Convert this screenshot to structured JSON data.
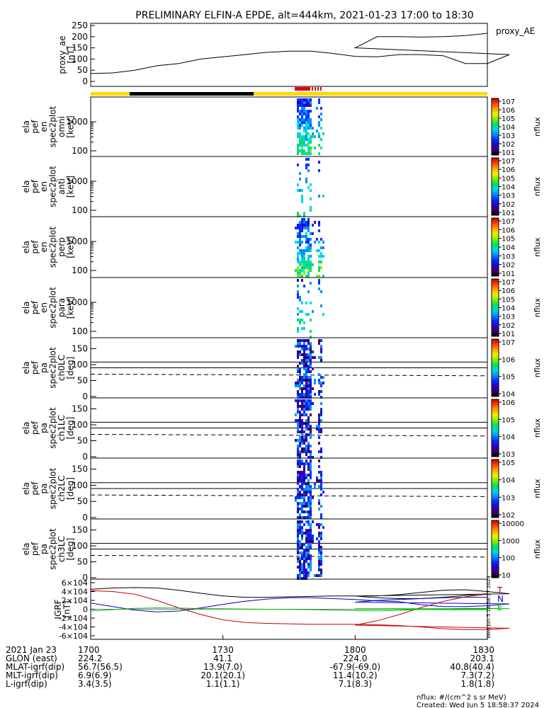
{
  "title": "PRELIMINARY ELFIN-A EPDE, alt=444km, 2021-01-23 17:00 to 18:30",
  "colors": {
    "bar_yellow": "#ffd800",
    "bar_black": "#000000",
    "bar_red": "#e00000",
    "igrf_black": "#000000",
    "igrf_red": "#cc0000",
    "igrf_blue": "#0000cc",
    "igrf_green": "#00bb00",
    "colorbar": [
      "#000000",
      "#3a0060",
      "#2a00c8",
      "#0030ff",
      "#0090ff",
      "#00d8e0",
      "#00e060",
      "#80f000",
      "#f0f000",
      "#ffa000",
      "#ff4000",
      "#c00000"
    ]
  },
  "chart_data": [
    {
      "type": "line",
      "ylabel": "proxy_ae\n[nT]",
      "legend": "proxy_AE",
      "ylim": [
        0,
        250
      ],
      "yticks": [
        "0",
        "50",
        "100",
        "150",
        "200",
        "250"
      ],
      "x": [
        1700,
        1705,
        1710,
        1715,
        1720,
        1725,
        1730,
        1735,
        1740,
        1745,
        1750,
        1755,
        1760,
        1765,
        1770,
        1775,
        1780,
        1785,
        1790,
        1795,
        1800,
        1805,
        1810,
        1815,
        1820,
        1825,
        1830
      ],
      "values": [
        35,
        38,
        50,
        70,
        80,
        100,
        110,
        120,
        130,
        135,
        135,
        125,
        112,
        110,
        120,
        120,
        115,
        80,
        80,
        120,
        150,
        200,
        200,
        198,
        200,
        205,
        215
      ]
    },
    {
      "type": "heatmap",
      "ylabel": "ela\npef\nen\nspec2plot\nomni\n[keV]",
      "yticks": [
        "100",
        "1000"
      ],
      "cbar_label": "nflux",
      "cbar_ticks": [
        "101",
        "102",
        "103",
        "104",
        "105",
        "106",
        "107"
      ]
    },
    {
      "type": "heatmap",
      "ylabel": "ela\npef\nen\nspec2plot\nanti\n[keV]",
      "yticks": [
        "100",
        "1000"
      ],
      "cbar_label": "nflux",
      "cbar_ticks": [
        "101",
        "102",
        "103",
        "104",
        "105",
        "106",
        "107"
      ]
    },
    {
      "type": "heatmap",
      "ylabel": "ela\npef\nen\nspec2plot\nperp\n[keV]",
      "yticks": [
        "100",
        "1000"
      ],
      "cbar_label": "nflux",
      "cbar_ticks": [
        "101",
        "102",
        "103",
        "104",
        "105",
        "106",
        "107"
      ]
    },
    {
      "type": "heatmap",
      "ylabel": "ela\npef\nen\nspec2plot\npara\n[keV]",
      "yticks": [
        "100",
        "1000"
      ],
      "cbar_label": "nflux",
      "cbar_ticks": [
        "101",
        "102",
        "103",
        "104",
        "105",
        "106",
        "107"
      ]
    },
    {
      "type": "heatmap",
      "ylabel": "ela\npef\npa\nspec2plot\nch0LC\n[deg]",
      "yticks": [
        "0",
        "50",
        "100",
        "150"
      ],
      "cbar_label": "nflux",
      "cbar_ticks": [
        "104",
        "105",
        "106",
        "107"
      ]
    },
    {
      "type": "heatmap",
      "ylabel": "ela\npef\npa\nspec2plot\nch1LC\n[deg]",
      "yticks": [
        "0",
        "50",
        "100",
        "150"
      ],
      "cbar_label": "nflux",
      "cbar_ticks": [
        "103",
        "104",
        "105",
        "106"
      ]
    },
    {
      "type": "heatmap",
      "ylabel": "ela\npef\npa\nspec2plot\nch2LC\n[deg]",
      "yticks": [
        "0",
        "50",
        "100",
        "150"
      ],
      "cbar_label": "nflux",
      "cbar_ticks": [
        "102",
        "103",
        "104",
        "105"
      ]
    },
    {
      "type": "heatmap",
      "ylabel": "ela\npef\npa\nspec2plot\nch3LC\n[deg]",
      "yticks": [
        "0",
        "50",
        "100",
        "150"
      ],
      "cbar_label": "nflux",
      "cbar_ticks": [
        "10",
        "100",
        "1000",
        "10000"
      ]
    },
    {
      "type": "line",
      "ylabel": "IGRF\n[nT]",
      "ylim": [
        -60000,
        60000
      ],
      "yticks": [
        "-6×104",
        "-4×104",
        "-2×104",
        "0",
        "2×104",
        "4×104",
        "6×104"
      ],
      "legend": [
        "T",
        "N",
        "E"
      ],
      "x": [
        1700,
        1705,
        1710,
        1715,
        1720,
        1725,
        1730,
        1735,
        1740,
        1745,
        1750,
        1755,
        1760,
        1765,
        1770,
        1775,
        1780,
        1785,
        1790,
        1795,
        1800,
        1805,
        1810,
        1815,
        1820,
        1825,
        1830
      ],
      "series": [
        {
          "name": "T",
          "values": [
            45000,
            48000,
            49000,
            48000,
            43000,
            36000,
            30000,
            27000,
            27000,
            28000,
            29000,
            30000,
            30000,
            30000,
            33000,
            38000,
            43000,
            44000,
            40000,
            35000,
            30000,
            26000,
            24000,
            24000,
            27000,
            31000,
            35000
          ]
        },
        {
          "name": "N",
          "values": [
            14000,
            6000,
            -2000,
            -6000,
            -4000,
            3000,
            11000,
            18000,
            23000,
            26000,
            26000,
            24000,
            22000,
            19000,
            17000,
            10000,
            6000,
            6000,
            8000,
            12000,
            16000,
            20000,
            22000,
            24000,
            26000,
            27000,
            27000
          ]
        },
        {
          "name": "E",
          "values": [
            42000,
            40000,
            34000,
            20000,
            3000,
            -12000,
            -24000,
            -30000,
            -32000,
            -33000,
            -34000,
            -34000,
            -34000,
            -35000,
            -37000,
            -40000,
            -44000,
            -46000,
            -46000,
            -43000,
            -36000,
            -26000,
            -12000,
            4000,
            18000,
            28000,
            34000
          ]
        },
        {
          "name": "green",
          "values": [
            -4000,
            -1000,
            2000,
            3000,
            2500,
            1500,
            1000,
            500,
            0,
            -500,
            -1000,
            -2000,
            -3000,
            -3500,
            -2500,
            -500,
            1000,
            2000,
            2000,
            1500,
            1000,
            500,
            0,
            -500,
            -1000,
            -1000,
            -1000
          ]
        }
      ]
    }
  ],
  "footer": {
    "labels": [
      "2021 Jan 23",
      "GLON (east)",
      "MLAT-igrf(dip)",
      "MLT-igrf(dip)",
      "L-igrf(dip)"
    ],
    "columns": [
      {
        "values": [
          "1700",
          "224.2",
          "56.7(56.5)",
          "6.9(6.9)",
          "3.4(3.5)"
        ]
      },
      {
        "values": [
          "1730",
          "41.1",
          "13.9(7.0)",
          "20.1(20.1)",
          "1.1(1.1)"
        ]
      },
      {
        "values": [
          "1800",
          "224.0",
          "-67.9(-69.0)",
          "11.4(10.2)",
          "7.1(8.3)"
        ]
      },
      {
        "values": [
          "1830",
          "203.1",
          "40.8(40.4)",
          "7.3(7.2)",
          "1.8(1.8)"
        ]
      }
    ],
    "nflux_note": "nflux: #/(cm^2 s sr MeV)",
    "created": "Created: Wed Jun  5 18:58:37 2024",
    "side_created": "Wed Jun  5 18:58:37 2024"
  }
}
